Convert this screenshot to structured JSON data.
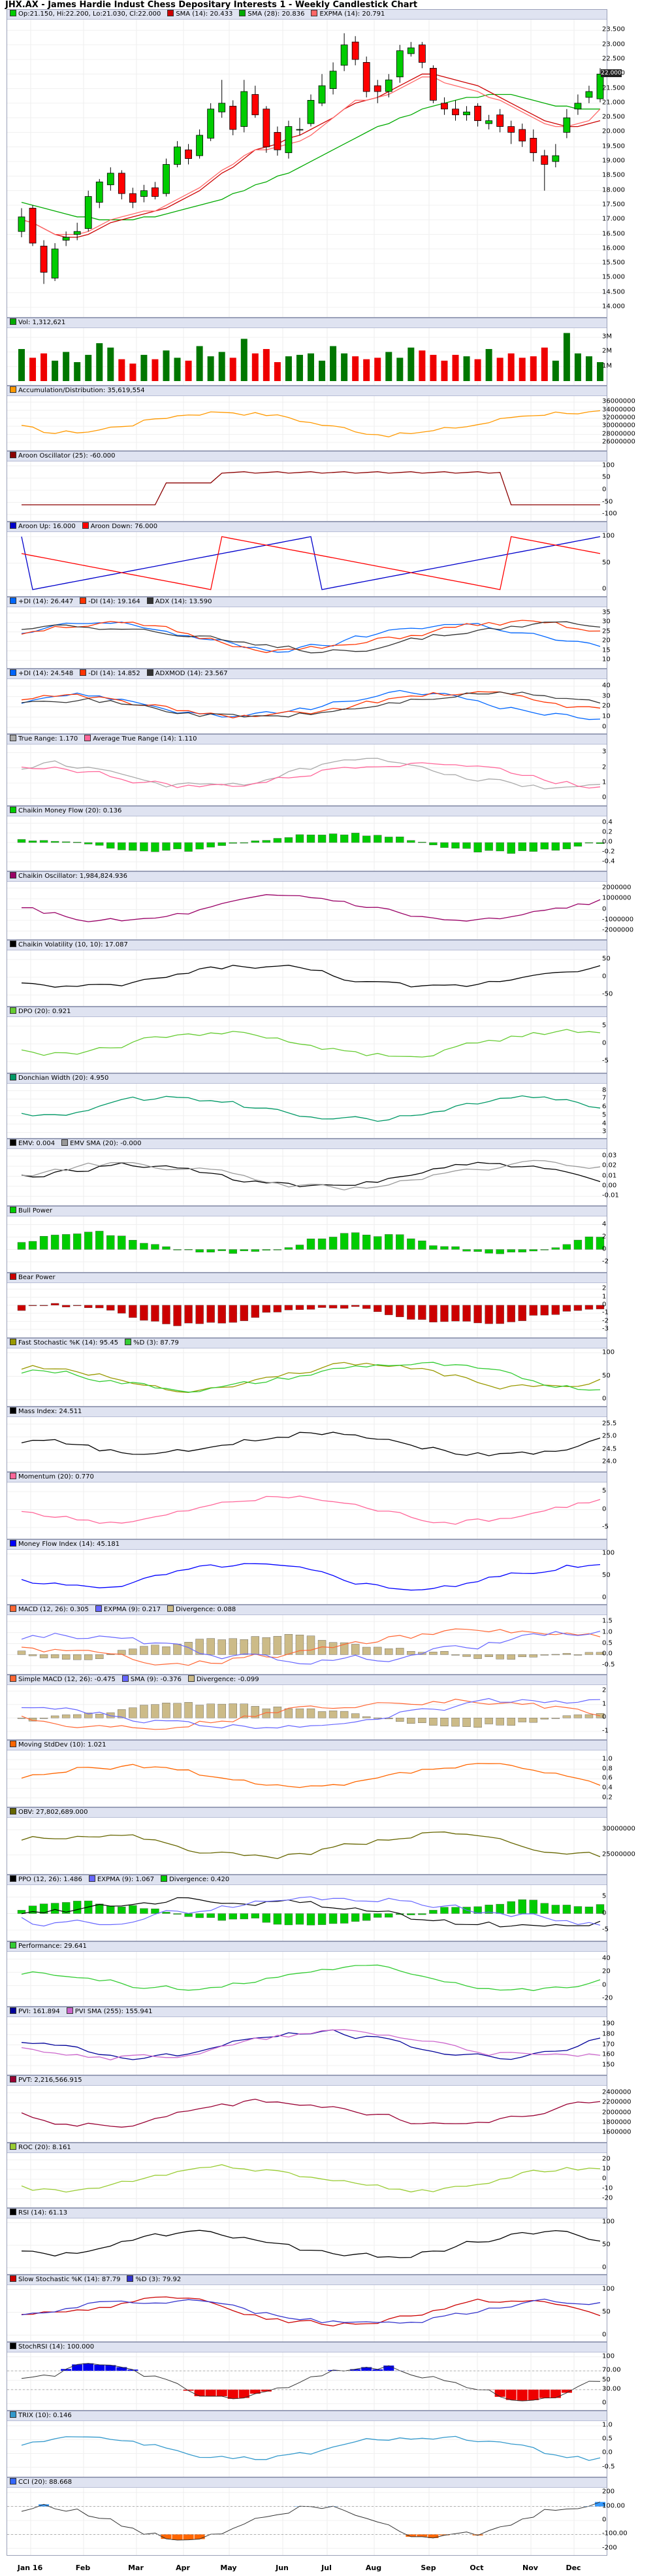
{
  "title": "JHX.AX - James Hardie Indust Chess Depositary Interests 1 - Weekly Candlestick Chart",
  "x_axis_labels": [
    "Jan 16",
    "Feb",
    "Mar",
    "Apr",
    "May",
    "Jun",
    "Jul",
    "Aug",
    "Sep",
    "Oct",
    "Nov",
    "Dec"
  ],
  "colors": {
    "up": "#00cc00",
    "down": "#ff0000",
    "panel_title_bg": "#dfe3f1",
    "grid": "#e8e8e8"
  },
  "chart_data": [
    {
      "type": "candlestick",
      "name": "price",
      "legend": [
        {
          "label": "Op:21.150, Hi:22.200, Lo:21.030, Cl:22.000",
          "color": "#00cc00"
        },
        {
          "label": "SMA (14): 20.433",
          "color": "#cc0000"
        },
        {
          "label": "SMA (28): 20.836",
          "color": "#00aa00"
        },
        {
          "label": "EXPMA (14): 20.791",
          "color": "#ff6666"
        }
      ],
      "yticks": [
        "23.500",
        "23.000",
        "22.500",
        "22.000",
        "21.500",
        "21.000",
        "20.500",
        "20.000",
        "19.500",
        "19.000",
        "18.500",
        "18.000",
        "17.500",
        "17.000",
        "16.500",
        "16.000",
        "15.500",
        "15.000",
        "14.500",
        "14.000"
      ],
      "ylim": [
        13.8,
        23.8
      ],
      "last_price": "22.000",
      "open": [
        16.6,
        17.4,
        16.1,
        15.0,
        16.3,
        16.5,
        16.7,
        17.6,
        18.2,
        18.6,
        17.9,
        17.8,
        18.1,
        17.9,
        18.9,
        19.4,
        19.2,
        19.8,
        20.7,
        20.9,
        20.2,
        21.3,
        20.8,
        20.0,
        19.3,
        20.1,
        20.3,
        21.0,
        21.5,
        22.3,
        23.1,
        22.4,
        21.6,
        21.4,
        21.9,
        22.7,
        23.0,
        22.2,
        21.0,
        20.8,
        20.6,
        20.9,
        20.3,
        20.6,
        20.2,
        20.1,
        19.8,
        19.2,
        19.0,
        20.0,
        20.8,
        21.2,
        21.15
      ],
      "close": [
        17.1,
        16.2,
        15.2,
        16.0,
        16.4,
        16.6,
        17.8,
        18.3,
        18.6,
        17.9,
        17.6,
        18.0,
        17.8,
        18.9,
        19.5,
        19.1,
        19.9,
        20.8,
        21.0,
        20.1,
        21.4,
        20.6,
        19.5,
        19.4,
        20.2,
        20.1,
        21.1,
        21.6,
        22.1,
        23.0,
        22.5,
        21.4,
        21.4,
        21.8,
        22.8,
        22.9,
        22.4,
        21.1,
        20.8,
        20.6,
        20.7,
        20.4,
        20.4,
        20.2,
        20.0,
        19.7,
        19.3,
        18.9,
        19.2,
        20.5,
        21.0,
        21.4,
        22.0
      ],
      "high": [
        17.4,
        17.5,
        16.3,
        16.2,
        16.6,
        16.9,
        18.0,
        18.4,
        18.8,
        18.7,
        18.1,
        18.2,
        18.3,
        19.1,
        19.7,
        19.6,
        20.1,
        21.0,
        21.8,
        21.1,
        21.8,
        21.6,
        20.9,
        20.2,
        20.4,
        20.5,
        21.3,
        22.0,
        22.4,
        23.4,
        23.3,
        22.6,
        21.8,
        22.0,
        23.0,
        23.1,
        23.1,
        22.3,
        21.2,
        21.1,
        20.9,
        21.0,
        20.6,
        20.8,
        20.4,
        20.3,
        20.1,
        19.4,
        19.6,
        20.8,
        21.3,
        21.6,
        22.2
      ],
      "low": [
        16.4,
        16.1,
        14.8,
        14.9,
        16.1,
        16.3,
        16.6,
        17.4,
        18.0,
        17.7,
        17.4,
        17.6,
        17.7,
        17.8,
        18.8,
        18.9,
        19.1,
        19.7,
        20.5,
        19.9,
        20.0,
        20.5,
        19.3,
        19.2,
        19.1,
        19.9,
        20.2,
        20.9,
        21.3,
        22.1,
        22.3,
        21.2,
        21.0,
        21.2,
        21.7,
        22.6,
        22.2,
        21.0,
        20.6,
        20.4,
        20.4,
        20.2,
        20.1,
        20.0,
        19.6,
        19.5,
        19.0,
        18.0,
        18.8,
        19.8,
        20.6,
        21.0,
        21.03
      ],
      "sma14": [
        17.0,
        16.9,
        16.7,
        16.5,
        16.4,
        16.4,
        16.5,
        16.7,
        16.9,
        17.0,
        17.1,
        17.2,
        17.3,
        17.4,
        17.6,
        17.8,
        18.0,
        18.3,
        18.6,
        18.8,
        19.1,
        19.4,
        19.5,
        19.6,
        19.8,
        19.9,
        20.1,
        20.3,
        20.5,
        20.8,
        21.0,
        21.1,
        21.2,
        21.4,
        21.6,
        21.8,
        22.0,
        22.0,
        21.9,
        21.8,
        21.7,
        21.6,
        21.4,
        21.2,
        21.0,
        20.8,
        20.6,
        20.4,
        20.3,
        20.2,
        20.2,
        20.3,
        20.4
      ],
      "sma28": [
        17.6,
        17.5,
        17.4,
        17.3,
        17.2,
        17.1,
        17.1,
        17.0,
        17.0,
        17.0,
        17.0,
        17.1,
        17.1,
        17.2,
        17.3,
        17.4,
        17.5,
        17.6,
        17.7,
        17.9,
        18.0,
        18.2,
        18.3,
        18.5,
        18.6,
        18.8,
        19.0,
        19.2,
        19.4,
        19.6,
        19.8,
        20.0,
        20.2,
        20.3,
        20.5,
        20.6,
        20.8,
        20.9,
        21.0,
        21.1,
        21.2,
        21.2,
        21.3,
        21.3,
        21.3,
        21.2,
        21.1,
        21.0,
        20.9,
        20.9,
        20.8,
        20.8,
        20.8
      ],
      "expma14": [
        17.0,
        16.9,
        16.7,
        16.5,
        16.5,
        16.5,
        16.6,
        16.8,
        17.0,
        17.1,
        17.2,
        17.3,
        17.3,
        17.5,
        17.7,
        17.9,
        18.1,
        18.4,
        18.7,
        18.9,
        19.2,
        19.4,
        19.4,
        19.5,
        19.6,
        19.7,
        19.9,
        20.2,
        20.5,
        20.8,
        21.1,
        21.1,
        21.2,
        21.3,
        21.5,
        21.7,
        21.9,
        21.9,
        21.7,
        21.6,
        21.5,
        21.4,
        21.2,
        21.1,
        20.9,
        20.7,
        20.5,
        20.3,
        20.2,
        20.2,
        20.3,
        20.4,
        20.8
      ]
    },
    {
      "type": "bar",
      "name": "volume",
      "legend": [
        {
          "label": "Vol: 1,312,621",
          "color": "#00aa00"
        }
      ],
      "yticks": [
        "3M",
        "2M",
        "1M"
      ],
      "ylim": [
        0,
        3.5
      ],
      "values": [
        2.2,
        1.6,
        1.9,
        1.4,
        2.0,
        1.3,
        1.8,
        2.6,
        2.3,
        1.5,
        1.2,
        1.8,
        1.5,
        2.1,
        1.6,
        1.4,
        2.4,
        1.7,
        2.0,
        1.6,
        2.9,
        1.9,
        2.2,
        1.3,
        1.7,
        1.8,
        1.9,
        1.4,
        2.4,
        1.9,
        1.7,
        1.5,
        1.6,
        2.0,
        1.6,
        2.3,
        2.1,
        1.8,
        1.4,
        1.8,
        1.7,
        1.5,
        2.2,
        1.6,
        1.9,
        1.6,
        1.7,
        2.3,
        1.4,
        3.3,
        1.9,
        1.7,
        1.3
      ]
    },
    {
      "type": "line",
      "name": "accumulation-distribution",
      "legend": [
        {
          "label": "Accumulation/Distribution: 35,619,554",
          "color": "#ff9900"
        }
      ],
      "yticks": [
        "36000000",
        "34000000",
        "32000000",
        "30000000",
        "28000000",
        "26000000"
      ],
      "ylim": [
        25000000,
        37000000
      ]
    },
    {
      "type": "line",
      "name": "aroon-oscillator",
      "legend": [
        {
          "label": "Aroon Oscillator (25): -60.000",
          "color": "#8b0000"
        }
      ],
      "yticks": [
        "100",
        "50",
        "0",
        "-50",
        "-100"
      ],
      "ylim": [
        -110,
        110
      ]
    },
    {
      "type": "line",
      "name": "aroon",
      "legend": [
        {
          "label": "Aroon Up: 16.000",
          "color": "#0000cc"
        },
        {
          "label": "Aroon Down: 76.000",
          "color": "#ff0000"
        }
      ],
      "yticks": [
        "100",
        "50",
        "0"
      ],
      "ylim": [
        -5,
        105
      ]
    },
    {
      "type": "line",
      "name": "dmi",
      "legend": [
        {
          "label": "+DI (14): 26.447",
          "color": "#0066ff"
        },
        {
          "label": "-DI (14): 19.164",
          "color": "#ff3300"
        },
        {
          "label": "ADX (14): 13.590",
          "color": "#333333"
        }
      ],
      "yticks": [
        "35",
        "30",
        "25",
        "20",
        "15",
        "10"
      ],
      "ylim": [
        8,
        37
      ]
    },
    {
      "type": "line",
      "name": "adxmod",
      "legend": [
        {
          "label": "+DI (14): 24.548",
          "color": "#0066ff"
        },
        {
          "label": "-DI (14): 14.852",
          "color": "#ff3300"
        },
        {
          "label": "ADXMOD (14): 23.567",
          "color": "#333333"
        }
      ],
      "yticks": [
        "40",
        "30",
        "20",
        "10",
        "0"
      ],
      "ylim": [
        -2,
        45
      ]
    },
    {
      "type": "line",
      "name": "true-range",
      "legend": [
        {
          "label": "True Range: 1.170",
          "color": "#aaaaaa"
        },
        {
          "label": "Average True Range (14): 1.110",
          "color": "#ff6699"
        }
      ],
      "yticks": [
        "3",
        "2",
        "1",
        "0"
      ],
      "ylim": [
        -0.2,
        3.4
      ]
    },
    {
      "type": "bar",
      "name": "chaikin-money-flow",
      "legend": [
        {
          "label": "Chaikin Money Flow (20): 0.136",
          "color": "#00cc00"
        }
      ],
      "yticks": [
        "0.4",
        "0.2",
        "0.0",
        "-0.2",
        "-0.4"
      ],
      "ylim": [
        -0.5,
        0.5
      ]
    },
    {
      "type": "line",
      "name": "chaikin-oscillator",
      "legend": [
        {
          "label": "Chaikin Oscillator: 1,984,824.936",
          "color": "#990066"
        }
      ],
      "yticks": [
        "2000000",
        "1000000",
        "0",
        "-1000000",
        "-2000000"
      ],
      "ylim": [
        -2400000,
        2400000
      ]
    },
    {
      "type": "line",
      "name": "chaikin-volatility",
      "legend": [
        {
          "label": "Chaikin Volatility (10, 10): 17.087",
          "color": "#000000"
        }
      ],
      "yticks": [
        "50",
        "0",
        "-50"
      ],
      "ylim": [
        -70,
        70
      ]
    },
    {
      "type": "line",
      "name": "dpo",
      "legend": [
        {
          "label": "DPO (20): 0.921",
          "color": "#66cc33"
        }
      ],
      "yticks": [
        "5",
        "0",
        "-5"
      ],
      "ylim": [
        -7,
        7
      ]
    },
    {
      "type": "line",
      "name": "donchian-width",
      "legend": [
        {
          "label": "Donchian Width (20): 4.950",
          "color": "#009966"
        }
      ],
      "yticks": [
        "8",
        "7",
        "6",
        "5",
        "4",
        "3"
      ],
      "ylim": [
        2.8,
        8.6
      ]
    },
    {
      "type": "line",
      "name": "emv",
      "legend": [
        {
          "label": "EMV: 0.004",
          "color": "#000000"
        },
        {
          "label": "EMV SMA (20): -0.000",
          "color": "#999999"
        }
      ],
      "yticks": [
        "0.03",
        "0.02",
        "0.01",
        "0.00",
        "-0.01"
      ],
      "ylim": [
        -0.015,
        0.035
      ]
    },
    {
      "type": "bar",
      "name": "bull-power",
      "legend": [
        {
          "label": "Bull Power",
          "color": "#00cc00"
        }
      ],
      "yticks": [
        "4",
        "2",
        "0",
        "-2"
      ],
      "ylim": [
        -3,
        5
      ]
    },
    {
      "type": "bar",
      "name": "bear-power",
      "legend": [
        {
          "label": "Bear Power",
          "color": "#cc0000"
        }
      ],
      "yticks": [
        "2",
        "1",
        "0",
        "-1",
        "-2",
        "-3"
      ],
      "ylim": [
        -3.5,
        2.5
      ]
    },
    {
      "type": "line",
      "name": "fast-stochastic",
      "legend": [
        {
          "label": "Fast Stochastic %K (14): 95.45",
          "color": "#999900"
        },
        {
          "label": "%D (3): 87.79",
          "color": "#33cc33"
        }
      ],
      "yticks": [
        "100",
        "50",
        "0"
      ],
      "ylim": [
        -5,
        105
      ]
    },
    {
      "type": "line",
      "name": "mass-index",
      "legend": [
        {
          "label": "Mass Index: 24.511",
          "color": "#000000"
        }
      ],
      "yticks": [
        "25.5",
        "25.0",
        "24.5",
        "24.0"
      ],
      "ylim": [
        23.8,
        25.7
      ]
    },
    {
      "type": "line",
      "name": "momentum",
      "legend": [
        {
          "label": "Momentum (20): 0.770",
          "color": "#ff6699"
        }
      ],
      "yticks": [
        "5",
        "0",
        "-5"
      ],
      "ylim": [
        -7,
        7
      ]
    },
    {
      "type": "line",
      "name": "money-flow-index",
      "legend": [
        {
          "label": "Money Flow Index (14): 45.181",
          "color": "#0000ff"
        }
      ],
      "yticks": [
        "100",
        "50",
        "0"
      ],
      "ylim": [
        -5,
        105
      ]
    },
    {
      "type": "bar",
      "name": "macd",
      "legend": [
        {
          "label": "MACD (12, 26): 0.305",
          "color": "#ff6633"
        },
        {
          "label": "EXPMA (9): 0.217",
          "color": "#6666ff"
        },
        {
          "label": "Divergence: 0.088",
          "color": "#ccbb88"
        }
      ],
      "yticks": [
        "1.5",
        "1.0",
        "0.5",
        "0.0",
        "-0.5"
      ],
      "ylim": [
        -0.7,
        1.7
      ]
    },
    {
      "type": "bar",
      "name": "simple-macd",
      "legend": [
        {
          "label": "Simple MACD (12, 26): -0.475",
          "color": "#ff6633"
        },
        {
          "label": "SMA (9): -0.376",
          "color": "#6666ff"
        },
        {
          "label": "Divergence: -0.099",
          "color": "#ccbb88"
        }
      ],
      "yticks": [
        "2",
        "1",
        "0",
        "-1"
      ],
      "ylim": [
        -1.3,
        2.3
      ]
    },
    {
      "type": "line",
      "name": "moving-stddev",
      "legend": [
        {
          "label": "Moving StdDev (10): 1.021",
          "color": "#ff6600"
        }
      ],
      "yticks": [
        "1.0",
        "0.8",
        "0.6",
        "0.4",
        "0.2"
      ],
      "ylim": [
        0.1,
        1.15
      ]
    },
    {
      "type": "line",
      "name": "obv",
      "legend": [
        {
          "label": "OBV: 27,802,689.000",
          "color": "#666600"
        }
      ],
      "yticks": [
        "30000000",
        "25000000"
      ],
      "ylim": [
        22000000,
        32000000
      ]
    },
    {
      "type": "bar",
      "name": "ppo",
      "legend": [
        {
          "label": "PPO (12, 26): 1.486",
          "color": "#000000"
        },
        {
          "label": "EXPMA (9): 1.067",
          "color": "#6666ff"
        },
        {
          "label": "Divergence: 0.420",
          "color": "#00cc00"
        }
      ],
      "yticks": [
        "5",
        "0",
        "-5"
      ],
      "ylim": [
        -7,
        8
      ]
    },
    {
      "type": "line",
      "name": "performance",
      "legend": [
        {
          "label": "Performance: 29.641",
          "color": "#33cc33"
        }
      ],
      "yticks": [
        "40",
        "20",
        "0",
        "-20"
      ],
      "ylim": [
        -25,
        48
      ]
    },
    {
      "type": "line",
      "name": "pvi",
      "legend": [
        {
          "label": "PVI: 161.894",
          "color": "#000099"
        },
        {
          "label": "PVI SMA (255): 155.941",
          "color": "#cc66cc"
        }
      ],
      "yticks": [
        "190",
        "180",
        "170",
        "160",
        "150"
      ],
      "ylim": [
        145,
        195
      ]
    },
    {
      "type": "line",
      "name": "pvt",
      "legend": [
        {
          "label": "PVT: 2,216,566.915",
          "color": "#990033"
        }
      ],
      "yticks": [
        "2400000",
        "2200000",
        "2000000",
        "1800000",
        "1600000"
      ],
      "ylim": [
        1500000,
        2500000
      ]
    },
    {
      "type": "line",
      "name": "roc",
      "legend": [
        {
          "label": "ROC (20): 8.161",
          "color": "#99cc33"
        }
      ],
      "yticks": [
        "20",
        "10",
        "0",
        "-10",
        "-20"
      ],
      "ylim": [
        -25,
        25
      ]
    },
    {
      "type": "line",
      "name": "rsi",
      "legend": [
        {
          "label": "RSI (14): 61.13",
          "color": "#000000"
        }
      ],
      "yticks": [
        "100",
        "50",
        "0"
      ],
      "ylim": [
        -5,
        105
      ]
    },
    {
      "type": "line",
      "name": "slow-stochastic",
      "legend": [
        {
          "label": "Slow Stochastic %K (14): 87.79",
          "color": "#cc0000"
        },
        {
          "label": "%D (3): 79.92",
          "color": "#3333cc"
        }
      ],
      "yticks": [
        "100",
        "50",
        "0"
      ],
      "ylim": [
        -5,
        105
      ]
    },
    {
      "type": "area",
      "name": "stochrsi",
      "legend": [
        {
          "label": "StochRSI (14): 100.000",
          "color": "#000000"
        }
      ],
      "yticks": [
        "100",
        "70.00",
        "50",
        "30.00",
        "0"
      ],
      "ylim": [
        -5,
        105
      ]
    },
    {
      "type": "line",
      "name": "trix",
      "legend": [
        {
          "label": "TRIX (10): 0.146",
          "color": "#3399cc"
        }
      ],
      "yticks": [
        "1.0",
        "0.5",
        "0.0",
        "-0.5"
      ],
      "ylim": [
        -0.7,
        1.1
      ]
    },
    {
      "type": "area",
      "name": "cci",
      "legend": [
        {
          "label": "CCI (20): 88.668",
          "color": "#3366ff"
        }
      ],
      "yticks": [
        "200",
        "100.00",
        "0",
        "-100.00",
        "-200"
      ],
      "ylim": [
        -220,
        220
      ]
    }
  ]
}
